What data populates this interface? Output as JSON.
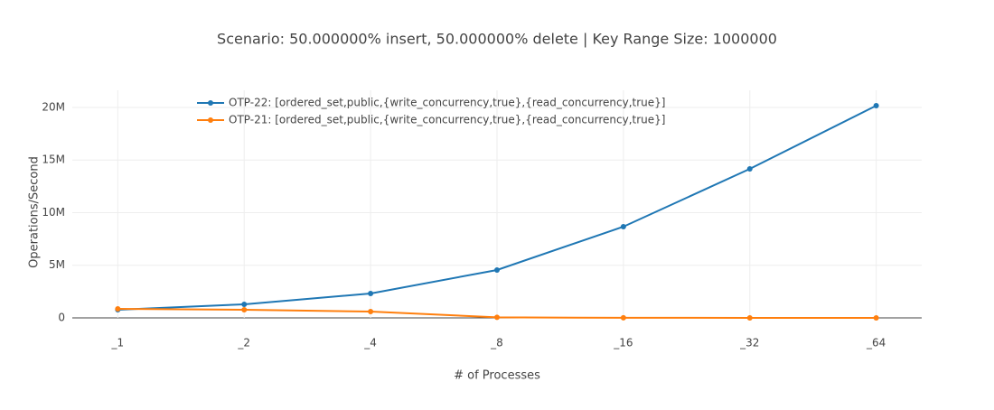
{
  "chart_data": {
    "type": "line",
    "title": "Scenario:  50.000000% insert,  50.000000% delete | Key Range Size: 1000000",
    "x_label": "# of Processes",
    "y_label": "Operations/Second",
    "categories": [
      "_1",
      "_2",
      "_4",
      "_8",
      "_16",
      "_32",
      "_64"
    ],
    "series": [
      {
        "name": "OTP-22: [ordered_set,public,{write_concurrency,true},{read_concurrency,true}]",
        "color": "#1f77b4",
        "values": [
          770000,
          1290000,
          2320000,
          4550000,
          8670000,
          14160000,
          20170000
        ]
      },
      {
        "name": "OTP-21: [ordered_set,public,{write_concurrency,true},{read_concurrency,true}]",
        "color": "#ff7f0e",
        "values": [
          860000,
          770000,
          600000,
          50000,
          10000,
          5000,
          3000
        ]
      }
    ],
    "ylim": [
      0,
      21630000
    ],
    "yticks": [
      0,
      {
        "value": 5000000,
        "label": "5M"
      },
      {
        "value": 10000000,
        "label": "10M"
      },
      {
        "value": 15000000,
        "label": "15M"
      },
      {
        "value": 20000000,
        "label": "20M"
      }
    ],
    "grid": true
  }
}
